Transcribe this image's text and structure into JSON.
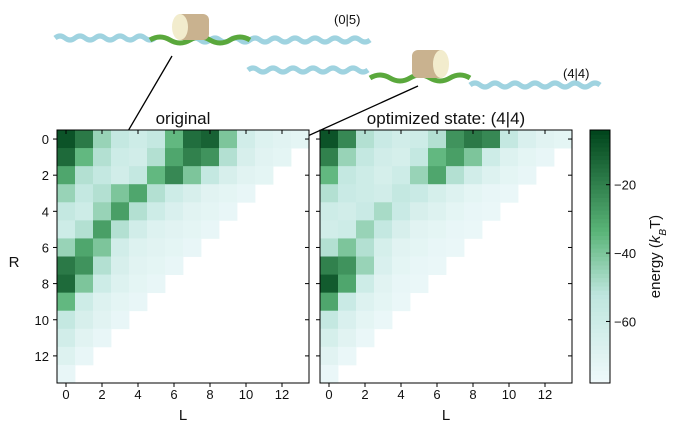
{
  "illustrations": {
    "labels": [
      "(0|5)",
      "(4|4)"
    ]
  },
  "chart_data": [
    {
      "type": "heatmap",
      "title": "original",
      "xlabel": "L",
      "ylabel": "R",
      "xlim": [
        -0.5,
        13.5
      ],
      "ylim": [
        13.5,
        -0.5
      ],
      "xticks": [
        0,
        2,
        4,
        6,
        8,
        10,
        12
      ],
      "yticks": [
        0,
        2,
        4,
        6,
        8,
        10,
        12
      ],
      "show_ytick_labels": true,
      "z": [
        [
          -8,
          -18,
          -45,
          -55,
          -60,
          -55,
          -35,
          -15,
          -12,
          -40,
          -62,
          -68,
          -70,
          -72
        ],
        [
          -14,
          -35,
          -50,
          -60,
          -62,
          -50,
          -30,
          -20,
          -25,
          -50,
          -65,
          -70,
          -72
        ],
        [
          -30,
          -50,
          -55,
          -62,
          -55,
          -35,
          -22,
          -40,
          -55,
          -65,
          -70,
          -72
        ],
        [
          -45,
          -55,
          -50,
          -40,
          -30,
          -50,
          -60,
          -65,
          -70,
          -72,
          -74
        ],
        [
          -55,
          -60,
          -45,
          -28,
          -50,
          -60,
          -66,
          -70,
          -72,
          -74
        ],
        [
          -60,
          -50,
          -28,
          -50,
          -62,
          -68,
          -70,
          -72,
          -74
        ],
        [
          -45,
          -30,
          -40,
          -62,
          -68,
          -70,
          -72,
          -74
        ],
        [
          -18,
          -25,
          -50,
          -65,
          -70,
          -72,
          -74
        ],
        [
          -14,
          -40,
          -60,
          -68,
          -72,
          -74
        ],
        [
          -35,
          -60,
          -68,
          -72,
          -74
        ],
        [
          -55,
          -65,
          -70,
          -74
        ],
        [
          -62,
          -70,
          -74
        ],
        [
          -68,
          -74
        ],
        [
          -74
        ]
      ]
    },
    {
      "type": "heatmap",
      "title": "optimized state: (4|4)",
      "xlabel": "L",
      "xlim": [
        -0.5,
        13.5
      ],
      "ylim": [
        13.5,
        -0.5
      ],
      "xticks": [
        0,
        2,
        4,
        6,
        8,
        10,
        12
      ],
      "yticks": [
        0,
        2,
        4,
        6,
        8,
        10,
        12
      ],
      "show_ytick_labels": false,
      "z": [
        [
          -8,
          -22,
          -50,
          -58,
          -62,
          -60,
          -50,
          -25,
          -18,
          -22,
          -55,
          -66,
          -70,
          -72
        ],
        [
          -20,
          -45,
          -55,
          -62,
          -64,
          -55,
          -35,
          -28,
          -40,
          -60,
          -68,
          -72,
          -74
        ],
        [
          -35,
          -55,
          -60,
          -64,
          -60,
          -45,
          -30,
          -50,
          -62,
          -68,
          -72,
          -74
        ],
        [
          -50,
          -58,
          -60,
          -62,
          -55,
          -58,
          -64,
          -68,
          -72,
          -74,
          -75
        ],
        [
          -60,
          -62,
          -58,
          -48,
          -58,
          -65,
          -68,
          -72,
          -74,
          -75
        ],
        [
          -62,
          -60,
          -45,
          -55,
          -65,
          -70,
          -72,
          -74,
          -75
        ],
        [
          -50,
          -40,
          -50,
          -64,
          -70,
          -72,
          -74,
          -75
        ],
        [
          -20,
          -25,
          -45,
          -66,
          -72,
          -74,
          -75
        ],
        [
          -10,
          -30,
          -60,
          -70,
          -74,
          -75
        ],
        [
          -30,
          -58,
          -68,
          -72,
          -75
        ],
        [
          -55,
          -66,
          -72,
          -75
        ],
        [
          -64,
          -70,
          -75
        ],
        [
          -70,
          -75
        ],
        [
          -75
        ]
      ]
    },
    {
      "type": "colorbar",
      "label_parts": [
        "energy (",
        "k",
        "B",
        "T)"
      ],
      "lim": [
        -78,
        -4
      ],
      "ticks": [
        {
          "value": -20,
          "label": "−20"
        },
        {
          "value": -40,
          "label": "−40"
        },
        {
          "value": -60,
          "label": "−60"
        }
      ]
    }
  ]
}
